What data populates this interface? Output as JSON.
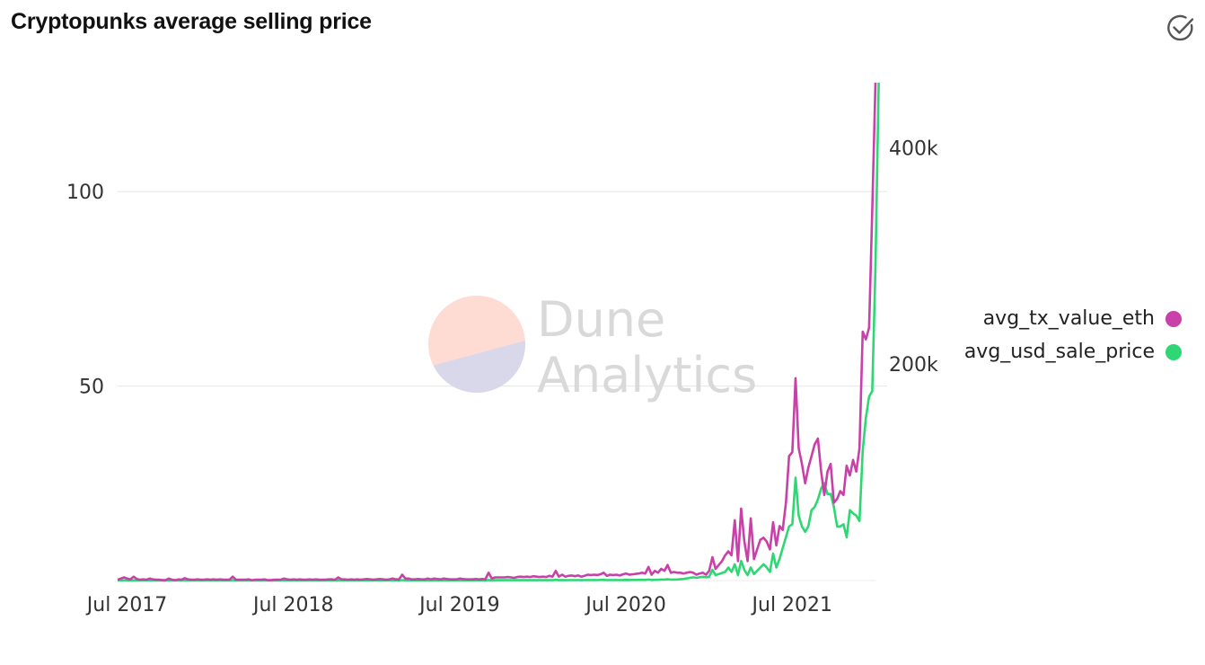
{
  "header": {
    "title": "Cryptopunks average selling price",
    "check_icon": "circle-check-icon"
  },
  "watermark": {
    "line1": "Dune",
    "line2": "Analytics"
  },
  "colors": {
    "eth": "#c940a8",
    "usd": "#2fd774",
    "grid": "#e6e6e6",
    "axis": "#333333"
  },
  "chart_data": {
    "type": "line",
    "title": "Cryptopunks average selling price",
    "x_start": "2017-06-23",
    "x_interval": "weekly",
    "x_ticks": [
      "Jul 2017",
      "Jul 2018",
      "Jul 2019",
      "Jul 2020",
      "Jul 2021"
    ],
    "x_tick_weeks": [
      1,
      53,
      105,
      157,
      209
    ],
    "y_left": {
      "ticks": [
        50,
        100
      ],
      "tick_labels": [
        "50",
        "100"
      ],
      "lim": [
        0,
        128
      ]
    },
    "y_right": {
      "ticks": [
        200000,
        400000
      ],
      "tick_labels": [
        "200k",
        "400k"
      ],
      "lim": [
        0,
        460000
      ]
    },
    "legend": {
      "position": "right",
      "entries": [
        "avg_tx_value_eth",
        "avg_usd_sale_price"
      ]
    },
    "series": [
      {
        "name": "avg_tx_value_eth",
        "axis": "left",
        "values": [
          0.2,
          0.5,
          0.8,
          0.5,
          0.3,
          1.0,
          0.4,
          0.2,
          0.3,
          0.2,
          0.5,
          0.3,
          0.2,
          0.2,
          0.1,
          0.1,
          0.5,
          0.2,
          0.1,
          0.3,
          0.2,
          0.6,
          0.3,
          0.2,
          0.2,
          0.3,
          0.2,
          0.2,
          0.3,
          0.2,
          0.3,
          0.2,
          0.3,
          0.2,
          0.2,
          0.2,
          1.0,
          0.2,
          0.2,
          0.2,
          0.2,
          0.3,
          0.1,
          0.2,
          0.2,
          0.2,
          0.3,
          0.1,
          0.1,
          0.2,
          0.2,
          0.2,
          0.5,
          0.3,
          0.2,
          0.3,
          0.2,
          0.3,
          0.2,
          0.2,
          0.3,
          0.2,
          0.3,
          0.2,
          0.2,
          0.2,
          0.3,
          0.3,
          0.2,
          0.8,
          0.3,
          0.3,
          0.2,
          0.3,
          0.2,
          0.3,
          0.2,
          0.3,
          0.4,
          0.3,
          0.2,
          0.3,
          0.4,
          0.3,
          0.2,
          0.3,
          0.5,
          0.3,
          0.3,
          1.5,
          0.5,
          0.5,
          0.3,
          0.3,
          0.4,
          0.3,
          0.3,
          0.5,
          0.3,
          0.5,
          0.4,
          0.3,
          0.5,
          0.4,
          0.3,
          0.3,
          0.3,
          0.5,
          0.4,
          0.3,
          0.3,
          0.3,
          0.4,
          0.3,
          0.4,
          0.3,
          2.0,
          0.5,
          0.8,
          0.8,
          0.8,
          0.8,
          0.9,
          0.8,
          0.7,
          0.9,
          1.0,
          0.9,
          1.0,
          0.9,
          1.1,
          1.0,
          0.9,
          1.0,
          0.9,
          1.2,
          1.0,
          2.5,
          1.0,
          1.5,
          1.0,
          1.2,
          1.3,
          1.1,
          1.3,
          1.0,
          1.2,
          1.5,
          1.4,
          1.5,
          1.4,
          1.6,
          2.0,
          1.2,
          1.5,
          1.4,
          1.5,
          1.3,
          1.6,
          1.8,
          1.5,
          1.6,
          1.7,
          1.8,
          2.0,
          1.8,
          3.5,
          1.5,
          2.5,
          2.0,
          3.0,
          2.5,
          4.0,
          2.0,
          2.2,
          2.0,
          2.0,
          1.8,
          2.0,
          2.2,
          2.0,
          1.5,
          1.8,
          2.0,
          1.5,
          2.5,
          6.0,
          3.0,
          4.0,
          5.0,
          6.5,
          7.5,
          6.5,
          15.5,
          5.0,
          18.5,
          10.0,
          5.0,
          16.0,
          5.5,
          8.0,
          10.5,
          11.0,
          10.0,
          8.0,
          15.0,
          9.0,
          14.0,
          13.0,
          20.0,
          32.0,
          33.0,
          52.0,
          34.0,
          30.0,
          25.0,
          29.0,
          32.0,
          35.0,
          36.5,
          28.0,
          22.0,
          28.0,
          30.0,
          20.0,
          21.0,
          23.0,
          22.0,
          29.5,
          27.0,
          31.0,
          28.0,
          34.0,
          64.0,
          62.0,
          65.0,
          95.0,
          128.0
        ]
      },
      {
        "name": "avg_usd_sale_price",
        "axis": "right",
        "values": [
          100,
          200,
          200,
          150,
          100,
          200,
          150,
          100,
          150,
          100,
          200,
          150,
          100,
          100,
          100,
          100,
          200,
          100,
          100,
          150,
          100,
          200,
          150,
          100,
          100,
          150,
          100,
          100,
          150,
          100,
          200,
          100,
          150,
          100,
          100,
          100,
          400,
          100,
          100,
          100,
          100,
          150,
          100,
          100,
          100,
          100,
          150,
          100,
          100,
          100,
          100,
          100,
          200,
          150,
          100,
          150,
          100,
          150,
          100,
          100,
          150,
          100,
          150,
          100,
          100,
          100,
          150,
          150,
          100,
          300,
          150,
          150,
          100,
          150,
          100,
          150,
          100,
          150,
          200,
          150,
          100,
          150,
          200,
          150,
          100,
          150,
          200,
          150,
          150,
          400,
          200,
          200,
          150,
          150,
          200,
          150,
          150,
          200,
          150,
          200,
          200,
          150,
          200,
          200,
          150,
          150,
          150,
          200,
          200,
          150,
          150,
          150,
          200,
          150,
          200,
          150,
          500,
          200,
          300,
          300,
          300,
          300,
          300,
          300,
          300,
          300,
          350,
          300,
          350,
          300,
          350,
          350,
          300,
          350,
          300,
          400,
          350,
          700,
          350,
          500,
          350,
          400,
          450,
          400,
          450,
          350,
          400,
          500,
          450,
          500,
          450,
          550,
          600,
          400,
          500,
          450,
          500,
          450,
          500,
          550,
          500,
          550,
          550,
          600,
          650,
          600,
          900,
          500,
          700,
          700,
          900,
          800,
          1200,
          800,
          900,
          1000,
          1200,
          1500,
          2000,
          2500,
          3000,
          2500,
          3000,
          3500,
          3000,
          3500,
          10000,
          5000,
          6000,
          7000,
          8000,
          12000,
          8000,
          15000,
          5000,
          18000,
          10000,
          5000,
          12000,
          6000,
          9000,
          12000,
          15000,
          12000,
          8000,
          25000,
          12000,
          20000,
          30000,
          40000,
          50000,
          52000,
          95000,
          60000,
          50000,
          45000,
          50000,
          65000,
          68000,
          75000,
          85000,
          90000,
          80000,
          80000,
          68000,
          50000,
          50000,
          52000,
          40000,
          65000,
          62000,
          60000,
          55000,
          120000,
          150000,
          170000,
          175000,
          290000,
          460000
        ]
      }
    ]
  }
}
